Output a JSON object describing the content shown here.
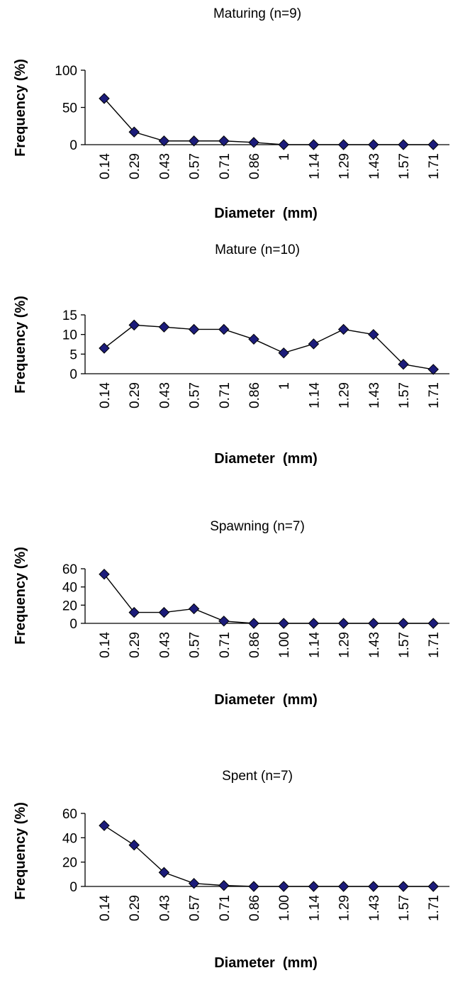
{
  "colors": {
    "marker": "#1c1c7a",
    "line": "#000000"
  },
  "chart_data": [
    {
      "type": "line",
      "title": "Maturing (n=9)",
      "xlabel": "Diameter  (mm)",
      "ylabel": "Frequency (%)",
      "categories": [
        "0.14",
        "0.29",
        "0.43",
        "0.57",
        "0.71",
        "0.86",
        "1",
        "1.14",
        "1.29",
        "1.43",
        "1.57",
        "1.71"
      ],
      "series": [
        {
          "values": [
            62,
            17,
            5,
            5,
            5,
            3,
            0,
            0,
            0,
            0,
            0,
            0
          ]
        }
      ],
      "ylim": [
        0,
        100
      ],
      "yticks": [
        0,
        50,
        100
      ],
      "marker": "diamond",
      "grid": false,
      "legend": "none"
    },
    {
      "type": "line",
      "title": "Mature (n=10)",
      "xlabel": "Diameter  (mm)",
      "ylabel": "Frequency (%)",
      "categories": [
        "0.14",
        "0.29",
        "0.43",
        "0.57",
        "0.71",
        "0.86",
        "1",
        "1.14",
        "1.29",
        "1.43",
        "1.57",
        "1.71"
      ],
      "series": [
        {
          "values": [
            6.5,
            12.4,
            11.9,
            11.3,
            11.3,
            8.8,
            5.3,
            7.6,
            11.3,
            10.0,
            2.4,
            1.1
          ]
        }
      ],
      "ylim": [
        0,
        15
      ],
      "yticks": [
        0,
        5,
        10,
        15
      ],
      "marker": "diamond",
      "grid": false,
      "legend": "none"
    },
    {
      "type": "line",
      "title": "Spawning (n=7)",
      "xlabel": "Diameter  (mm)",
      "ylabel": "Frequency (%)",
      "categories": [
        "0.14",
        "0.29",
        "0.43",
        "0.57",
        "0.71",
        "0.86",
        "1.00",
        "1.14",
        "1.29",
        "1.43",
        "1.57",
        "1.71"
      ],
      "series": [
        {
          "values": [
            54,
            12,
            12,
            16,
            2.5,
            0,
            0,
            0,
            0,
            0,
            0,
            0
          ]
        }
      ],
      "ylim": [
        0,
        60
      ],
      "yticks": [
        0,
        20,
        40,
        60
      ],
      "marker": "diamond",
      "grid": false,
      "legend": "none"
    },
    {
      "type": "line",
      "title": "Spent (n=7)",
      "xlabel": "Diameter  (mm)",
      "ylabel": "Frequency (%)",
      "categories": [
        "0.14",
        "0.29",
        "0.43",
        "0.57",
        "0.71",
        "0.86",
        "1.00",
        "1.14",
        "1.29",
        "1.43",
        "1.57",
        "1.71"
      ],
      "series": [
        {
          "values": [
            50,
            34,
            11.5,
            2.5,
            0.8,
            0,
            0,
            0,
            0,
            0,
            0,
            0
          ]
        }
      ],
      "ylim": [
        0,
        60
      ],
      "yticks": [
        0,
        20,
        40,
        60
      ],
      "marker": "diamond",
      "grid": false,
      "legend": "none"
    }
  ]
}
